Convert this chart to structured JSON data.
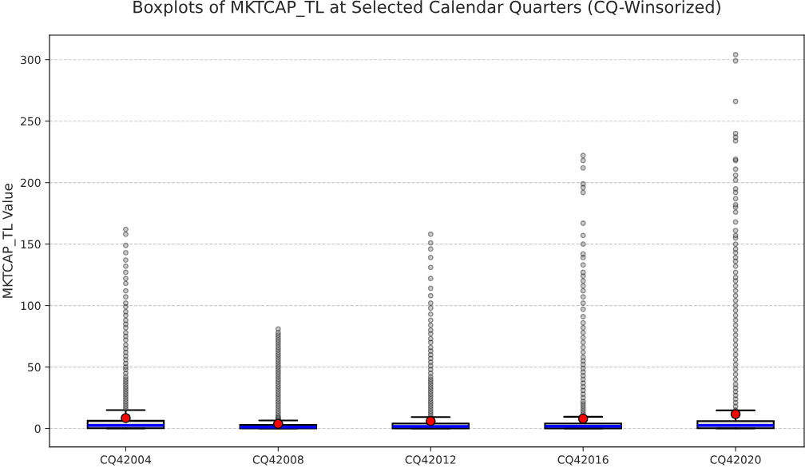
{
  "chart_data": {
    "type": "box",
    "title": "Boxplots of MKTCAP_TL at Selected Calendar Quarters (CQ-Winsorized)",
    "ylabel": "MKTCAP_TL Value",
    "categories": [
      "CQ42004",
      "CQ42008",
      "CQ42012",
      "CQ42016",
      "CQ42020"
    ],
    "boxes": [
      {
        "low": 0,
        "q1": 0.2,
        "median": 2.4,
        "q3": 6.3,
        "high": 15,
        "mean": 8.5,
        "outliers": [
          16,
          18,
          20,
          22,
          24,
          26,
          28,
          30,
          32,
          34,
          36,
          38,
          40,
          42,
          45,
          48,
          50,
          53,
          56,
          59,
          62,
          65,
          68,
          72,
          75,
          78,
          82,
          85,
          88,
          92,
          95,
          99,
          102,
          107,
          112,
          118,
          122,
          127,
          132,
          137,
          143,
          149,
          158,
          162
        ]
      },
      {
        "low": 0,
        "q1": 0.1,
        "median": 1.2,
        "q3": 3.0,
        "high": 6.5,
        "mean": 3.7,
        "outliers": [
          7,
          8,
          9,
          10,
          12,
          14,
          16,
          18,
          20,
          22,
          24,
          26,
          28,
          30,
          32,
          34,
          36,
          38,
          40,
          42,
          44,
          46,
          48,
          50,
          52,
          54,
          56,
          58,
          60,
          62,
          64,
          66,
          68,
          70,
          72,
          74,
          76,
          78,
          81
        ]
      },
      {
        "low": 0,
        "q1": 0.1,
        "median": 1.7,
        "q3": 4.1,
        "high": 9.3,
        "mean": 6.0,
        "outliers": [
          10,
          12,
          14,
          16,
          18,
          20,
          22,
          24,
          26,
          28,
          30,
          32,
          34,
          36,
          38,
          40,
          42,
          45,
          48,
          51,
          54,
          57,
          60,
          63,
          66,
          70,
          73,
          77,
          80,
          84,
          88,
          93,
          98,
          102,
          108,
          114,
          122,
          131,
          139,
          146,
          151,
          158
        ]
      },
      {
        "low": 0,
        "q1": 0.1,
        "median": 1.8,
        "q3": 4.1,
        "high": 9.5,
        "mean": 8.0,
        "outliers": [
          10,
          12,
          14,
          16,
          18,
          20,
          22,
          25,
          28,
          31,
          34,
          37,
          40,
          43,
          46,
          49,
          52,
          55,
          58,
          62,
          66,
          70,
          74,
          78,
          82,
          86,
          91,
          97,
          102,
          107,
          112,
          116,
          120,
          124,
          127,
          133,
          139,
          142,
          150,
          157,
          167,
          192,
          196,
          199,
          212,
          218,
          222
        ]
      },
      {
        "low": 0,
        "q1": 0.2,
        "median": 2.4,
        "q3": 6.0,
        "high": 14.7,
        "mean": 11.7,
        "outliers": [
          15,
          18,
          21,
          24,
          27,
          30,
          33,
          36,
          40,
          44,
          48,
          52,
          56,
          60,
          64,
          68,
          72,
          76,
          80,
          84,
          88,
          92,
          96,
          100,
          104,
          108,
          112,
          116,
          120,
          123,
          127,
          132,
          136,
          139,
          143,
          146,
          150,
          155,
          157,
          161,
          168,
          176,
          180,
          182,
          187,
          192,
          195,
          202,
          206,
          211,
          218,
          219,
          234,
          237,
          240,
          266,
          299,
          304
        ]
      }
    ],
    "ylim": [
      -15,
      320
    ],
    "yticks": [
      0,
      50,
      100,
      150,
      200,
      250,
      300
    ],
    "grid": "y"
  }
}
